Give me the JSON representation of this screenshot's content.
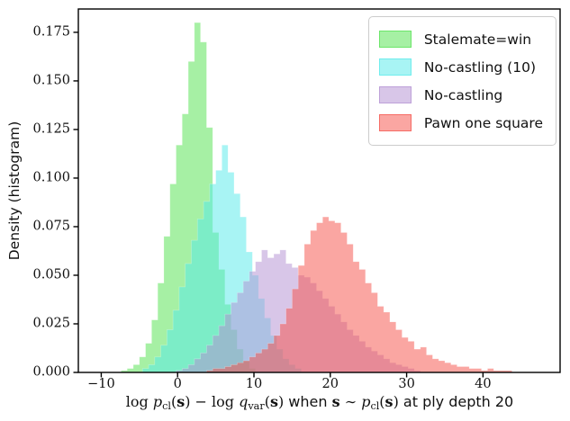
{
  "chart_data": {
    "type": "bar",
    "variant": "overlapping-histograms",
    "title": "",
    "ylabel": "Density (histogram)",
    "xlabel_text": "log p_cl(s) − log q_var(s) when s ∼ p_cl(s) at ply depth 20",
    "xlabel_segments": [
      {
        "text": "log ",
        "style": "roman"
      },
      {
        "text": "p",
        "style": "italic"
      },
      {
        "text": "cl",
        "style": "sub"
      },
      {
        "text": "(",
        "style": "roman"
      },
      {
        "text": "s",
        "style": "bold"
      },
      {
        "text": ")",
        "style": "roman"
      },
      {
        "text": " − ",
        "style": "roman"
      },
      {
        "text": "log ",
        "style": "roman"
      },
      {
        "text": "q",
        "style": "italic"
      },
      {
        "text": "var",
        "style": "sub"
      },
      {
        "text": "(",
        "style": "roman"
      },
      {
        "text": "s",
        "style": "bold"
      },
      {
        "text": ")",
        "style": "roman"
      },
      {
        "text": " when ",
        "style": "sans"
      },
      {
        "text": "s",
        "style": "bold"
      },
      {
        "text": " ∼ ",
        "style": "roman"
      },
      {
        "text": "p",
        "style": "italic"
      },
      {
        "text": "cl",
        "style": "sub"
      },
      {
        "text": "(",
        "style": "roman"
      },
      {
        "text": "s",
        "style": "bold"
      },
      {
        "text": ")",
        "style": "roman"
      },
      {
        "text": " at ply depth 20",
        "style": "sans"
      }
    ],
    "xlim": [
      -13,
      50.1
    ],
    "ylim": [
      0,
      0.187
    ],
    "grid": false,
    "legend_position": "upper right",
    "x_ticks": [
      {
        "value": -10,
        "label": "−10"
      },
      {
        "value": 0,
        "label": "0"
      },
      {
        "value": 10,
        "label": "10"
      },
      {
        "value": 20,
        "label": "20"
      },
      {
        "value": 30,
        "label": "30"
      },
      {
        "value": 40,
        "label": "40"
      }
    ],
    "y_ticks": [
      {
        "value": 0.0,
        "label": "0.000"
      },
      {
        "value": 0.025,
        "label": "0.025"
      },
      {
        "value": 0.05,
        "label": "0.050"
      },
      {
        "value": 0.075,
        "label": "0.075"
      },
      {
        "value": 0.1,
        "label": "0.100"
      },
      {
        "value": 0.125,
        "label": "0.125"
      },
      {
        "value": 0.15,
        "label": "0.150"
      },
      {
        "value": 0.175,
        "label": "0.175"
      }
    ],
    "bin_width": 0.8,
    "series": [
      {
        "name": "Stalemate=win",
        "color": "#4DE149",
        "alpha": 0.5,
        "peak_x": 2.6,
        "peak_density": 0.18,
        "bin_start": -7.4,
        "densities": [
          0.001,
          0.002,
          0.004,
          0.008,
          0.015,
          0.027,
          0.046,
          0.07,
          0.097,
          0.117,
          0.133,
          0.16,
          0.18,
          0.17,
          0.126,
          0.072,
          0.053,
          0.035,
          0.022,
          0.012,
          0.006,
          0.002
        ]
      },
      {
        "name": "No-castling (10)",
        "color": "#51E9E9",
        "alpha": 0.5,
        "peak_x": 6.2,
        "peak_density": 0.117,
        "bin_start": -4.6,
        "densities": [
          0.002,
          0.004,
          0.008,
          0.014,
          0.022,
          0.032,
          0.044,
          0.056,
          0.068,
          0.079,
          0.088,
          0.097,
          0.104,
          0.117,
          0.103,
          0.092,
          0.08,
          0.062,
          0.05,
          0.038,
          0.028,
          0.019,
          0.012,
          0.007,
          0.004,
          0.002
        ]
      },
      {
        "name": "No-castling",
        "color": "#B18DD1",
        "alpha": 0.5,
        "peak_x": 11.4,
        "peak_density": 0.063,
        "bin_start": -0.2,
        "densities": [
          0.001,
          0.002,
          0.004,
          0.007,
          0.01,
          0.014,
          0.019,
          0.024,
          0.03,
          0.036,
          0.041,
          0.047,
          0.052,
          0.057,
          0.063,
          0.059,
          0.061,
          0.063,
          0.056,
          0.054,
          0.05,
          0.049,
          0.046,
          0.042,
          0.038,
          0.034,
          0.03,
          0.026,
          0.022,
          0.019,
          0.016,
          0.013,
          0.011,
          0.009,
          0.007,
          0.005,
          0.004,
          0.003,
          0.002,
          0.001
        ]
      },
      {
        "name": "Pawn one square",
        "color": "#F54D45",
        "alpha": 0.5,
        "peak_x": 19.4,
        "peak_density": 0.08,
        "bin_start": 3.8,
        "densities": [
          0.001,
          0.002,
          0.002,
          0.003,
          0.004,
          0.005,
          0.006,
          0.008,
          0.01,
          0.012,
          0.015,
          0.019,
          0.025,
          0.033,
          0.043,
          0.055,
          0.066,
          0.073,
          0.077,
          0.08,
          0.078,
          0.077,
          0.072,
          0.066,
          0.057,
          0.053,
          0.046,
          0.041,
          0.034,
          0.031,
          0.026,
          0.022,
          0.018,
          0.016,
          0.012,
          0.013,
          0.009,
          0.007,
          0.006,
          0.005,
          0.004,
          0.003,
          0.003,
          0.002,
          0.002,
          0.001,
          0.002,
          0.001,
          0.001,
          0.001
        ]
      }
    ]
  }
}
